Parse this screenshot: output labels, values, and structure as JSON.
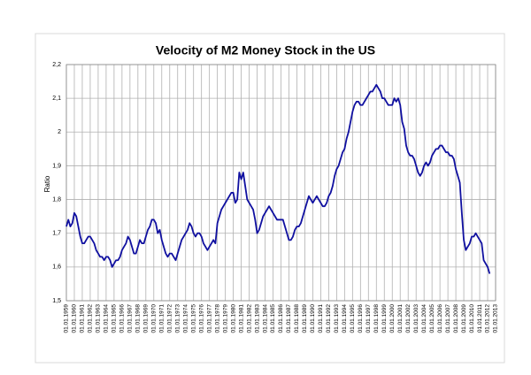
{
  "chart_data": {
    "type": "line",
    "title": "Velocity of M2 Money Stock in the US",
    "y_label": "Ratio",
    "color": "#1010a0",
    "grid": true,
    "ylim": [
      1.5,
      2.2
    ],
    "yticks": [
      {
        "value": 1.5,
        "label": "1,5"
      },
      {
        "value": 1.6,
        "label": "1,6"
      },
      {
        "value": 1.7,
        "label": "1,7"
      },
      {
        "value": 1.8,
        "label": "1,8"
      },
      {
        "value": 1.9,
        "label": "1,9"
      },
      2,
      {
        "value": 2.1,
        "label": "2,1"
      },
      {
        "value": 2.2,
        "label": "2,2"
      }
    ],
    "categories": [
      "01.01.1959",
      null,
      null,
      null,
      "01.01.1960",
      null,
      null,
      null,
      "01.01.1961",
      null,
      null,
      null,
      "01.01.1962",
      null,
      null,
      null,
      "01.01.1963",
      null,
      null,
      null,
      "01.01.1964",
      null,
      null,
      null,
      "01.01.1965",
      null,
      null,
      null,
      "01.01.1966",
      null,
      null,
      null,
      "01.01.1967",
      null,
      null,
      null,
      "01.01.1968",
      null,
      null,
      null,
      "01.01.1969",
      null,
      null,
      null,
      "01.01.1970",
      null,
      null,
      null,
      "01.01.1971",
      null,
      null,
      null,
      "01.01.1972",
      null,
      null,
      null,
      "01.01.1973",
      null,
      null,
      null,
      "01.01.1974",
      null,
      null,
      null,
      "01.01.1975",
      null,
      null,
      null,
      "01.01.1976",
      null,
      null,
      null,
      "01.01.1977",
      null,
      null,
      null,
      "01.01.1978",
      null,
      null,
      null,
      "01.01.1979",
      null,
      null,
      null,
      "01.01.1980",
      null,
      null,
      null,
      "01.01.1981",
      null,
      null,
      null,
      "01.01.1982",
      null,
      null,
      null,
      "01.01.1983",
      null,
      null,
      null,
      "01.01.1984",
      null,
      null,
      null,
      "01.01.1985",
      null,
      null,
      null,
      "01.01.1986",
      null,
      null,
      null,
      "01.01.1987",
      null,
      null,
      null,
      "01.01.1988",
      null,
      null,
      null,
      "01.01.1989",
      null,
      null,
      null,
      "01.01.1990",
      null,
      null,
      null,
      "01.01.1991",
      null,
      null,
      null,
      "01.01.1992",
      null,
      null,
      null,
      "01.01.1993",
      null,
      null,
      null,
      "01.01.1994",
      null,
      null,
      null,
      "01.01.1995",
      null,
      null,
      null,
      "01.01.1996",
      null,
      null,
      null,
      "01.01.1997",
      null,
      null,
      null,
      "01.01.1998",
      null,
      null,
      null,
      "01.01.1999",
      null,
      null,
      null,
      "01.01.2000",
      null,
      null,
      null,
      "01.01.2001",
      null,
      null,
      null,
      "01.01.2002",
      null,
      null,
      null,
      "01.01.2003",
      null,
      null,
      null,
      "01.01.2004",
      null,
      null,
      null,
      "01.01.2005",
      null,
      null,
      null,
      "01.01.2006",
      null,
      null,
      null,
      "01.01.2007",
      null,
      null,
      null,
      "01.01.2008",
      null,
      null,
      null,
      "01.01.2009",
      null,
      null,
      null,
      "01.01.2010",
      null,
      null,
      null,
      "01.01.2011",
      null,
      null,
      null,
      "01.01.2012",
      null,
      null,
      null,
      "01.01.2013"
    ],
    "values": [
      1.72,
      1.74,
      1.72,
      1.73,
      1.76,
      1.75,
      1.72,
      1.69,
      1.67,
      1.67,
      1.68,
      1.69,
      1.69,
      1.68,
      1.67,
      1.65,
      1.64,
      1.63,
      1.63,
      1.62,
      1.63,
      1.63,
      1.62,
      1.6,
      1.61,
      1.62,
      1.62,
      1.63,
      1.65,
      1.66,
      1.67,
      1.69,
      1.68,
      1.66,
      1.64,
      1.64,
      1.66,
      1.68,
      1.67,
      1.67,
      1.69,
      1.71,
      1.72,
      1.74,
      1.74,
      1.73,
      1.7,
      1.71,
      1.68,
      1.66,
      1.64,
      1.63,
      1.64,
      1.64,
      1.63,
      1.62,
      1.64,
      1.66,
      1.68,
      1.69,
      1.7,
      1.71,
      1.73,
      1.72,
      1.7,
      1.69,
      1.7,
      1.7,
      1.69,
      1.67,
      1.66,
      1.65,
      1.66,
      1.67,
      1.68,
      1.67,
      1.73,
      1.75,
      1.77,
      1.78,
      1.79,
      1.8,
      1.81,
      1.82,
      1.82,
      1.79,
      1.8,
      1.88,
      1.86,
      1.88,
      1.84,
      1.8,
      1.79,
      1.78,
      1.77,
      1.74,
      1.7,
      1.71,
      1.73,
      1.75,
      1.76,
      1.77,
      1.78,
      1.77,
      1.76,
      1.75,
      1.74,
      1.74,
      1.74,
      1.74,
      1.72,
      1.7,
      1.68,
      1.68,
      1.69,
      1.71,
      1.72,
      1.72,
      1.73,
      1.75,
      1.77,
      1.79,
      1.81,
      1.8,
      1.79,
      1.8,
      1.81,
      1.8,
      1.79,
      1.78,
      1.78,
      1.79,
      1.81,
      1.82,
      1.84,
      1.87,
      1.89,
      1.9,
      1.92,
      1.94,
      1.95,
      1.98,
      2.0,
      2.03,
      2.06,
      2.08,
      2.09,
      2.09,
      2.08,
      2.08,
      2.09,
      2.1,
      2.11,
      2.12,
      2.12,
      2.13,
      2.14,
      2.13,
      2.12,
      2.1,
      2.1,
      2.09,
      2.08,
      2.08,
      2.08,
      2.1,
      2.09,
      2.1,
      2.08,
      2.03,
      2.01,
      1.96,
      1.94,
      1.93,
      1.93,
      1.92,
      1.9,
      1.88,
      1.87,
      1.88,
      1.9,
      1.91,
      1.9,
      1.91,
      1.93,
      1.94,
      1.95,
      1.95,
      1.96,
      1.96,
      1.95,
      1.94,
      1.94,
      1.93,
      1.93,
      1.92,
      1.89,
      1.87,
      1.85,
      1.76,
      1.68,
      1.65,
      1.66,
      1.67,
      1.69,
      1.69,
      1.7,
      1.69,
      1.68,
      1.67,
      1.62,
      1.61,
      1.6,
      1.58,
      null,
      null,
      null
    ]
  }
}
